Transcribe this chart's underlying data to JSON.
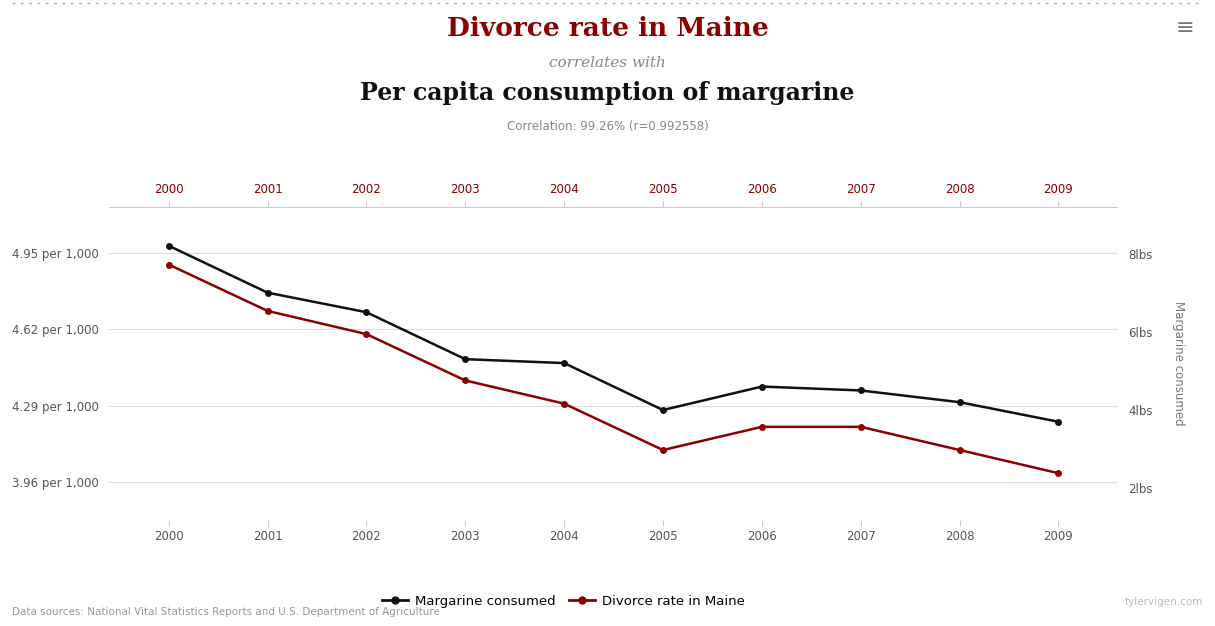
{
  "title_line1": "Divorce rate in Maine",
  "title_line2": "correlates with",
  "title_line3": "Per capita consumption of margarine",
  "correlation_text": "Correlation: 99.26% (r=0.992558)",
  "years": [
    2000,
    2001,
    2002,
    2003,
    2004,
    2005,
    2006,
    2007,
    2008,
    2009
  ],
  "margarine": [
    8.2,
    7.0,
    6.5,
    5.3,
    5.2,
    4.0,
    4.6,
    4.5,
    4.2,
    3.7
  ],
  "divorce": [
    4.9,
    4.7,
    4.6,
    4.4,
    4.3,
    4.1,
    4.2,
    4.2,
    4.1,
    4.0
  ],
  "divorce_ylim": [
    3.8,
    5.15
  ],
  "margarine_ylim": [
    1.2,
    9.2
  ],
  "divorce_yticks": [
    3.96,
    4.29,
    4.62,
    4.95
  ],
  "divorce_ytick_labels": [
    "3.96 per 1,000",
    "4.29 per 1,000",
    "4.62 per 1,000",
    "4.95 per 1,000"
  ],
  "margarine_yticks": [
    2,
    4,
    6,
    8
  ],
  "margarine_ytick_labels": [
    "2lbs",
    "4lbs",
    "6lbs",
    "8lbs"
  ],
  "margarine_color": "#111111",
  "divorce_color": "#8B0000",
  "background_color": "#FFFFFF",
  "grid_color": "#DDDDDD",
  "source_text": "Data sources: National Vital Statistics Reports and U.S. Department of Agriculture",
  "watermark": "tylervigen.com",
  "legend_margarine": "Margarine consumed",
  "legend_divorce": "Divorce rate in Maine",
  "ylabel_left": "Divorce rate in Maine",
  "ylabel_right": "Margarine consumed",
  "xlabel_color_top": "#8B0000",
  "xlabel_color_bottom": "#555555"
}
